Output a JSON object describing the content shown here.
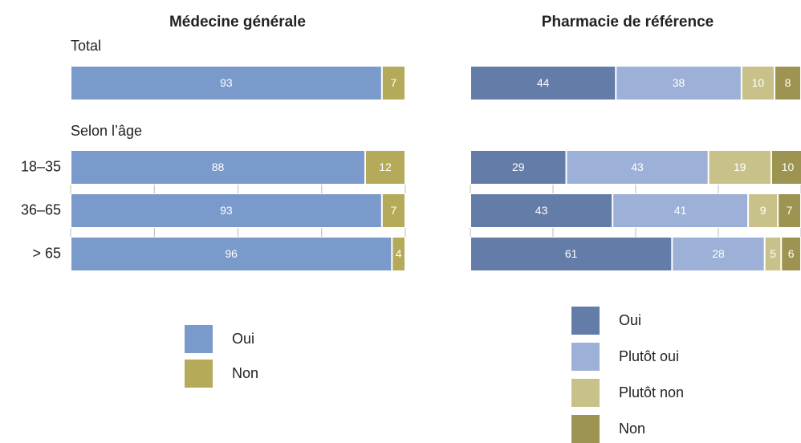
{
  "chart_data": [
    {
      "type": "stacked-barh",
      "title": "Médecine générale",
      "annotations": [
        "Selon l’âge"
      ],
      "categories": [
        "Total",
        "18–35",
        "36–65",
        "> 65"
      ],
      "xlim": [
        0,
        100
      ],
      "xticks": [
        0,
        25,
        50,
        75,
        100
      ],
      "series": [
        {
          "name": "Oui",
          "color": "#7a9acb",
          "values": [
            93,
            88,
            93,
            96
          ]
        },
        {
          "name": "Non",
          "color": "#b5aa5a",
          "values": [
            7,
            12,
            7,
            4
          ]
        }
      ]
    },
    {
      "type": "stacked-barh",
      "title": "Pharmacie de référence",
      "xlim": [
        0,
        100
      ],
      "xticks": [
        0,
        25,
        50,
        75,
        100
      ],
      "series": [
        {
          "name": "Oui",
          "color": "#647ca8",
          "values": [
            44,
            29,
            43,
            61
          ]
        },
        {
          "name": "Plutôt oui",
          "color": "#9cb0d8",
          "values": [
            38,
            43,
            41,
            28
          ]
        },
        {
          "name": "Plutôt non",
          "color": "#c8c28a",
          "values": [
            10,
            19,
            9,
            5
          ]
        },
        {
          "name": "Non",
          "color": "#9c9450",
          "values": [
            8,
            10,
            7,
            6
          ]
        }
      ]
    }
  ]
}
